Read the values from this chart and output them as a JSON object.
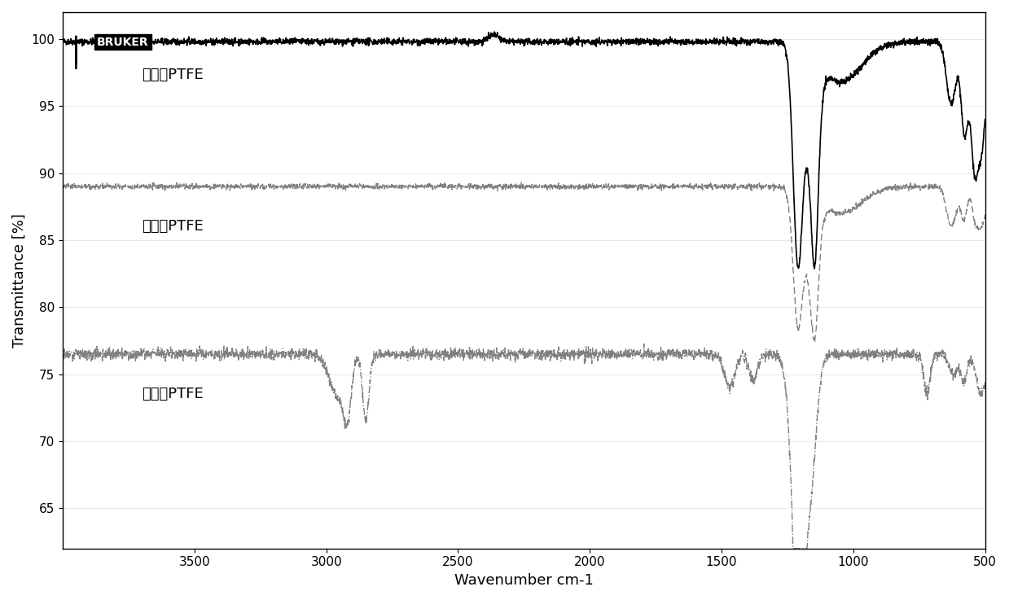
{
  "title": "",
  "xlabel": "Wavenumber cm-1",
  "ylabel": "Transmittance [%]",
  "xlim": [
    500,
    4000
  ],
  "ylim": [
    62,
    102
  ],
  "yticks": [
    65,
    70,
    75,
    80,
    85,
    90,
    95,
    100
  ],
  "xticks": [
    500,
    1000,
    1500,
    2000,
    2500,
    3000,
    3500
  ],
  "background_color": "#ffffff",
  "label1": "抽提后PTFE",
  "label2": "对比纼PTFE",
  "label3": "含石蜡PTFE",
  "line1_base": 99.8,
  "line2_base": 89.0,
  "line3_base": 76.5,
  "font_size": 13
}
